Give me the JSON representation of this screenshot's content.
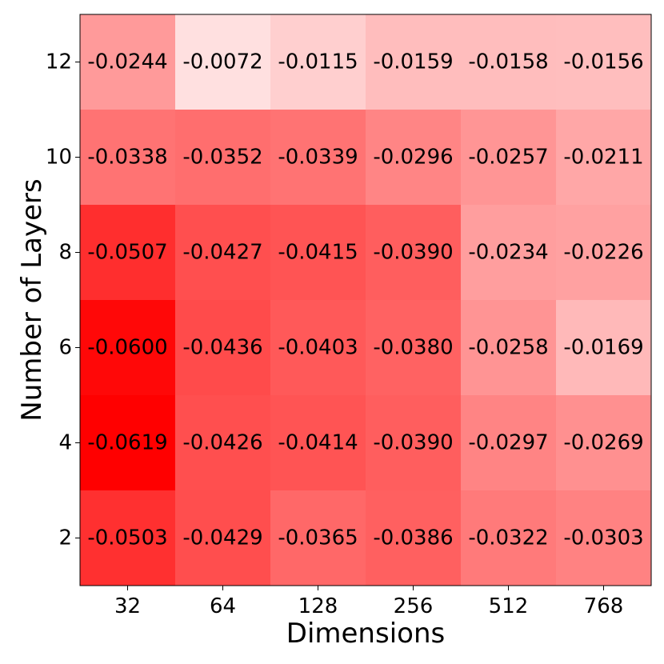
{
  "chart_data": {
    "type": "heatmap",
    "title": "",
    "xlabel": "Dimensions",
    "ylabel": "Number of Layers",
    "x_categories": [
      "32",
      "64",
      "128",
      "256",
      "512",
      "768"
    ],
    "y_categories": [
      "12",
      "10",
      "8",
      "6",
      "4",
      "2"
    ],
    "values": [
      [
        -0.0244,
        -0.0072,
        -0.0115,
        -0.0159,
        -0.0158,
        -0.0156
      ],
      [
        -0.0338,
        -0.0352,
        -0.0339,
        -0.0296,
        -0.0257,
        -0.0211
      ],
      [
        -0.0507,
        -0.0427,
        -0.0415,
        -0.039,
        -0.0234,
        -0.0226
      ],
      [
        -0.06,
        -0.0436,
        -0.0403,
        -0.038,
        -0.0258,
        -0.0169
      ],
      [
        -0.0619,
        -0.0426,
        -0.0414,
        -0.039,
        -0.0297,
        -0.0269
      ],
      [
        -0.0503,
        -0.0429,
        -0.0365,
        -0.0386,
        -0.0322,
        -0.0303
      ]
    ],
    "colormap": "white-to-red (more negative = more red)",
    "colors": {
      "high": "#ff0000",
      "low": "#ffffff"
    },
    "grid": false,
    "legend": "none"
  }
}
